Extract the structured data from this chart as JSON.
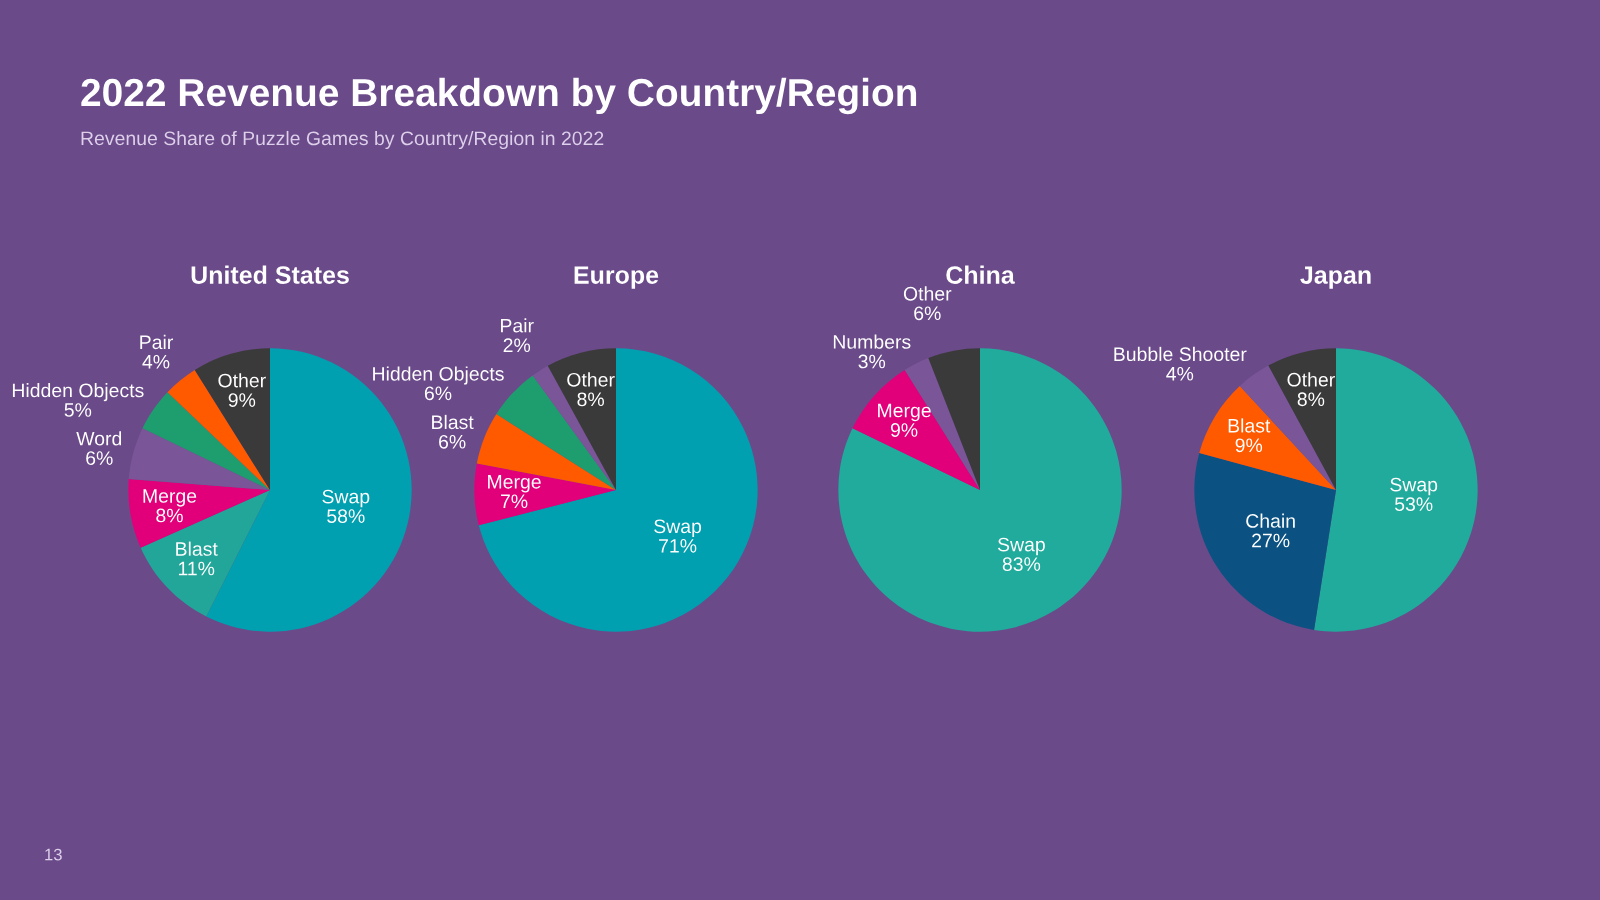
{
  "chart_data": [
    {
      "type": "pie",
      "title": "United States",
      "annotations": [
        "2022 Revenue Breakdown by Country/Region",
        "Revenue Share of Puzzle Games by Country/Region in 2022",
        "13"
      ],
      "categories": [
        "Swap",
        "Blast",
        "Merge",
        "Word",
        "Hidden Objects",
        "Pair",
        "Other"
      ],
      "values": [
        58,
        11,
        8,
        6,
        5,
        4,
        9
      ],
      "value_labels": [
        "58%",
        "11%",
        "8%",
        "6%",
        "5%",
        "4%",
        "9%"
      ],
      "colors": [
        "#00a0b0",
        "#22a699",
        "#e2007a",
        "#7a5699",
        "#1e9e6e",
        "#ff5a00",
        "#3a3a3a"
      ]
    },
    {
      "type": "pie",
      "title": "Europe",
      "categories": [
        "Swap",
        "Merge",
        "Blast",
        "Hidden Objects",
        "Pair",
        "Other"
      ],
      "values": [
        71,
        7,
        6,
        6,
        2,
        8
      ],
      "value_labels": [
        "71%",
        "7%",
        "6%",
        "6%",
        "2%",
        "8%"
      ],
      "colors": [
        "#00a0b0",
        "#e2007a",
        "#ff5a00",
        "#1e9e6e",
        "#7a5699",
        "#3a3a3a"
      ]
    },
    {
      "type": "pie",
      "title": "China",
      "categories": [
        "Swap",
        "Merge",
        "Numbers",
        "Other"
      ],
      "values": [
        83,
        9,
        3,
        6
      ],
      "value_labels": [
        "83%",
        "9%",
        "3%",
        "6%"
      ],
      "colors": [
        "#20ab9c",
        "#e2007a",
        "#7a5699",
        "#3a3a3a"
      ]
    },
    {
      "type": "pie",
      "title": "Japan",
      "categories": [
        "Swap",
        "Chain",
        "Blast",
        "Bubble Shooter",
        "Other"
      ],
      "values": [
        53,
        27,
        9,
        4,
        8
      ],
      "value_labels": [
        "53%",
        "27%",
        "9%",
        "4%",
        "8%"
      ],
      "colors": [
        "#20ab9c",
        "#0b5283",
        "#ff5a00",
        "#7a5699",
        "#3a3a3a"
      ]
    }
  ]
}
